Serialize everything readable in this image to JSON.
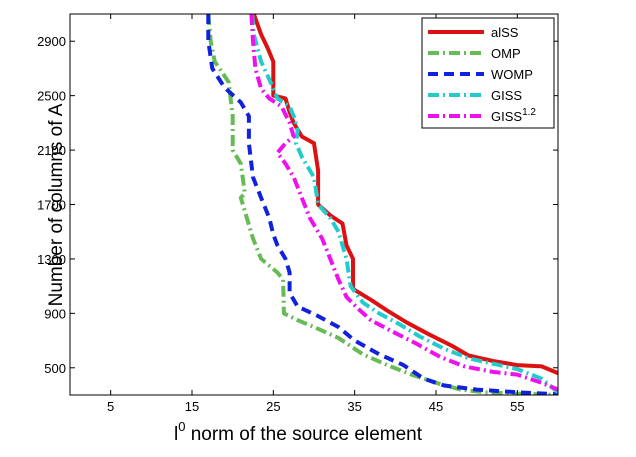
{
  "chart_data": {
    "type": "line",
    "xlabel_base": "l",
    "xlabel_sup": "0",
    "xlabel_rest": " norm of the source element",
    "ylabel": "Number of columns of A",
    "xlim": [
      0,
      60
    ],
    "ylim": [
      300,
      3100
    ],
    "x_ticks": [
      5,
      15,
      25,
      35,
      45,
      55
    ],
    "y_ticks": [
      500,
      900,
      1300,
      1700,
      2100,
      2500,
      2900
    ],
    "grid": false,
    "legend_position": "top-right",
    "series": [
      {
        "name": "alSS",
        "name_sup": "",
        "color": "#dd1111",
        "dash": "",
        "width": 4,
        "points": [
          [
            22.6,
            3100
          ],
          [
            23.5,
            2950
          ],
          [
            24.3,
            2850
          ],
          [
            25.0,
            2750
          ],
          [
            25.0,
            2500
          ],
          [
            26.5,
            2480
          ],
          [
            27.0,
            2380
          ],
          [
            27.5,
            2300
          ],
          [
            28.5,
            2200
          ],
          [
            30.0,
            2150
          ],
          [
            30.5,
            1950
          ],
          [
            30.5,
            1700
          ],
          [
            32.0,
            1620
          ],
          [
            33.5,
            1560
          ],
          [
            34.0,
            1400
          ],
          [
            34.8,
            1300
          ],
          [
            34.8,
            1080
          ],
          [
            37.0,
            1000
          ],
          [
            39.0,
            920
          ],
          [
            41.5,
            830
          ],
          [
            44.0,
            750
          ],
          [
            47.0,
            660
          ],
          [
            49.0,
            590
          ],
          [
            52.0,
            550
          ],
          [
            55.0,
            520
          ],
          [
            58.0,
            510
          ],
          [
            60.0,
            460
          ]
        ]
      },
      {
        "name": "OMP",
        "name_sup": "",
        "color": "#66bb55",
        "dash": "11,4,2,4",
        "width": 4,
        "points": [
          [
            17.0,
            3100
          ],
          [
            17.3,
            2900
          ],
          [
            17.8,
            2750
          ],
          [
            19.5,
            2600
          ],
          [
            20.0,
            2350
          ],
          [
            20.0,
            2100
          ],
          [
            21.0,
            2000
          ],
          [
            21.5,
            1780
          ],
          [
            21.0,
            1750
          ],
          [
            22.5,
            1450
          ],
          [
            23.5,
            1300
          ],
          [
            25.5,
            1200
          ],
          [
            26.2,
            1150
          ],
          [
            26.3,
            900
          ],
          [
            28.0,
            850
          ],
          [
            30.0,
            800
          ],
          [
            33.0,
            720
          ],
          [
            36.0,
            600
          ],
          [
            39.0,
            520
          ],
          [
            42.0,
            450
          ],
          [
            45.0,
            390
          ],
          [
            48.0,
            340
          ],
          [
            51.0,
            320
          ],
          [
            55.0,
            310
          ],
          [
            60.0,
            300
          ]
        ]
      },
      {
        "name": "WOMP",
        "name_sup": "",
        "color": "#1122dd",
        "dash": "10,6",
        "width": 4,
        "points": [
          [
            17.0,
            3100
          ],
          [
            17.0,
            2900
          ],
          [
            17.5,
            2700
          ],
          [
            19.0,
            2560
          ],
          [
            21.0,
            2450
          ],
          [
            22.0,
            2350
          ],
          [
            22.0,
            2150
          ],
          [
            22.5,
            1900
          ],
          [
            23.5,
            1750
          ],
          [
            24.5,
            1600
          ],
          [
            25.0,
            1480
          ],
          [
            25.5,
            1400
          ],
          [
            26.5,
            1300
          ],
          [
            27.0,
            1200
          ],
          [
            27.0,
            1050
          ],
          [
            28.0,
            950
          ],
          [
            30.5,
            880
          ],
          [
            33.0,
            800
          ],
          [
            35.0,
            700
          ],
          [
            38.0,
            600
          ],
          [
            41.0,
            520
          ],
          [
            43.5,
            420
          ],
          [
            46.0,
            370
          ],
          [
            50.0,
            340
          ],
          [
            55.0,
            320
          ],
          [
            60.0,
            305
          ]
        ]
      },
      {
        "name": "GISS",
        "name_sup": "",
        "color": "#22cccc",
        "dash": "11,4,2,4",
        "width": 4,
        "points": [
          [
            22.4,
            3100
          ],
          [
            22.6,
            2950
          ],
          [
            23.5,
            2750
          ],
          [
            24.5,
            2620
          ],
          [
            25.5,
            2480
          ],
          [
            27.0,
            2420
          ],
          [
            27.5,
            2350
          ],
          [
            28.0,
            2250
          ],
          [
            27.8,
            2150
          ],
          [
            28.5,
            2050
          ],
          [
            30.0,
            1900
          ],
          [
            30.5,
            1700
          ],
          [
            32.0,
            1600
          ],
          [
            33.0,
            1500
          ],
          [
            34.0,
            1300
          ],
          [
            34.5,
            1100
          ],
          [
            36.0,
            980
          ],
          [
            38.0,
            900
          ],
          [
            40.5,
            820
          ],
          [
            43.0,
            730
          ],
          [
            46.0,
            640
          ],
          [
            49.0,
            570
          ],
          [
            52.0,
            530
          ],
          [
            55.0,
            490
          ],
          [
            58.0,
            420
          ],
          [
            60.0,
            320
          ]
        ]
      },
      {
        "name": "GISS",
        "name_sup": "1.2",
        "color": "#ee11ee",
        "dash": "11,4,2,4",
        "width": 4,
        "points": [
          [
            22.3,
            3100
          ],
          [
            22.5,
            2900
          ],
          [
            22.8,
            2700
          ],
          [
            23.5,
            2550
          ],
          [
            24.5,
            2480
          ],
          [
            26.0,
            2420
          ],
          [
            27.0,
            2300
          ],
          [
            27.5,
            2200
          ],
          [
            26.5,
            2150
          ],
          [
            25.5,
            2080
          ],
          [
            26.5,
            2000
          ],
          [
            27.5,
            1900
          ],
          [
            28.5,
            1750
          ],
          [
            29.5,
            1600
          ],
          [
            31.0,
            1450
          ],
          [
            32.0,
            1300
          ],
          [
            33.0,
            1150
          ],
          [
            34.0,
            1020
          ],
          [
            35.5,
            930
          ],
          [
            37.0,
            850
          ],
          [
            39.5,
            770
          ],
          [
            42.5,
            680
          ],
          [
            45.5,
            580
          ],
          [
            48.5,
            510
          ],
          [
            52.0,
            470
          ],
          [
            55.0,
            450
          ],
          [
            58.0,
            390
          ],
          [
            60.0,
            340
          ]
        ]
      }
    ]
  }
}
